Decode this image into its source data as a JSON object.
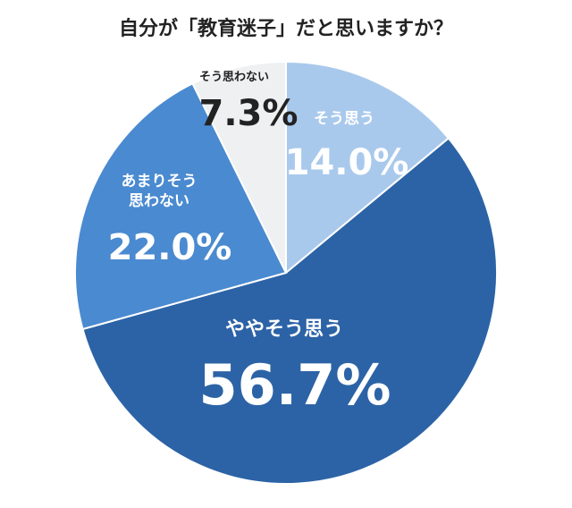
{
  "chart_data": {
    "type": "pie",
    "title": "自分が「教育迷子」だと思いますか？",
    "categories": [
      "そう思う",
      "ややそう思う",
      "あまりそう思わない",
      "そう思わない"
    ],
    "values": [
      14.0,
      56.7,
      22.0,
      7.3
    ],
    "value_labels": [
      "14.0%",
      "56.7%",
      "22.0%",
      "7.3%"
    ],
    "colors": [
      "#a9c9ec",
      "#2c63a6",
      "#4a8ad0",
      "#eef0f2"
    ]
  }
}
